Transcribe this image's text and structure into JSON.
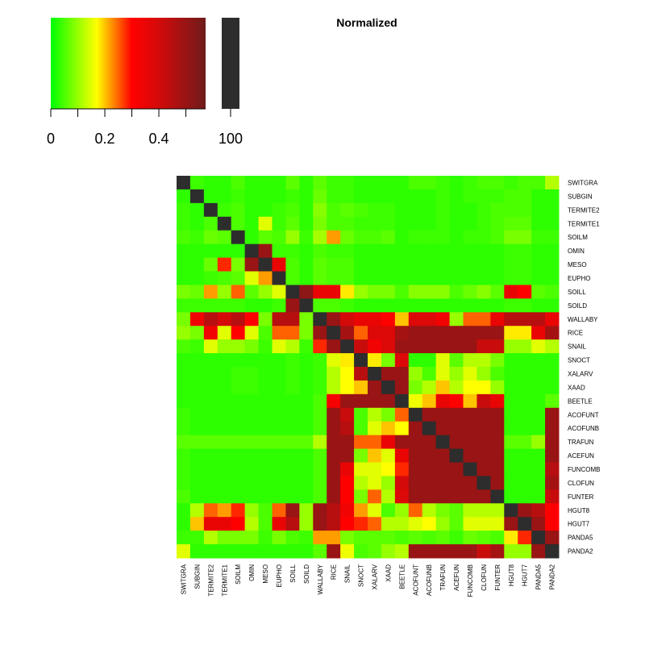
{
  "chart_data": {
    "type": "heatmap",
    "title": "Normalized",
    "labels": [
      "SWITGRA",
      "SUBGIN",
      "TERMITE2",
      "TERMITE1",
      "SOILM",
      "OMIN",
      "MESO",
      "EUPHO",
      "SOILL",
      "SOILD",
      "WALLABY",
      "RICE",
      "SNAIL",
      "SNOCT",
      "XALARV",
      "XAAD",
      "BEETLE",
      "ACOFUNT",
      "ACOFUNB",
      "TRAFUN",
      "ACEFUN",
      "FUNCOMB",
      "CLOFUN",
      "FUNTER",
      "HGUT8",
      "HGUT7",
      "PANDA5",
      "PANDA2"
    ],
    "colorscale": [
      [
        0,
        "#00ff00"
      ],
      [
        0.17,
        "#ffff00"
      ],
      [
        0.3,
        "#ff0000"
      ],
      [
        0.4,
        "#d40a0a"
      ],
      [
        0.573,
        "#6e1b1b"
      ]
    ],
    "clim": [
      0,
      0.573
    ],
    "colorbar_ticks": [
      0,
      0.2,
      0.4
    ],
    "colorbar_minor_ticks": [
      0.1,
      0.3,
      0.5
    ],
    "special": {
      "value": 100,
      "color": "#2d2d2d"
    },
    "values": [
      [
        100,
        0.04,
        0.03,
        0.03,
        0.05,
        0.03,
        0.03,
        0.03,
        0.06,
        0.03,
        0.06,
        0.04,
        0.04,
        0.03,
        0.03,
        0.03,
        0.03,
        0.05,
        0.05,
        0.04,
        0.03,
        0.04,
        0.05,
        0.05,
        0.04,
        0.05,
        0.05,
        0.12
      ],
      [
        0.03,
        100,
        0.03,
        0.03,
        0.04,
        0.03,
        0.03,
        0.03,
        0.04,
        0.03,
        0.07,
        0.04,
        0.04,
        0.03,
        0.03,
        0.03,
        0.03,
        0.03,
        0.03,
        0.04,
        0.03,
        0.04,
        0.04,
        0.04,
        0.05,
        0.05,
        0.03,
        0.03
      ],
      [
        0.04,
        0.03,
        100,
        0.04,
        0.05,
        0.03,
        0.03,
        0.04,
        0.05,
        0.03,
        0.09,
        0.05,
        0.06,
        0.05,
        0.04,
        0.04,
        0.03,
        0.03,
        0.03,
        0.04,
        0.03,
        0.03,
        0.04,
        0.05,
        0.05,
        0.05,
        0.03,
        0.03
      ],
      [
        0.04,
        0.03,
        0.05,
        100,
        0.05,
        0.03,
        0.15,
        0.04,
        0.06,
        0.03,
        0.08,
        0.05,
        0.05,
        0.04,
        0.04,
        0.04,
        0.03,
        0.03,
        0.03,
        0.04,
        0.03,
        0.03,
        0.04,
        0.05,
        0.06,
        0.06,
        0.03,
        0.03
      ],
      [
        0.05,
        0.04,
        0.07,
        0.06,
        100,
        0.03,
        0.06,
        0.05,
        0.1,
        0.04,
        0.11,
        0.22,
        0.07,
        0.05,
        0.05,
        0.06,
        0.03,
        0.04,
        0.04,
        0.04,
        0.03,
        0.04,
        0.04,
        0.05,
        0.08,
        0.08,
        0.04,
        0.04
      ],
      [
        0.03,
        0.03,
        0.03,
        0.03,
        0.03,
        100,
        0.5,
        0.04,
        0.04,
        0.03,
        0.05,
        0.04,
        0.04,
        0.03,
        0.03,
        0.03,
        0.03,
        0.03,
        0.03,
        0.03,
        0.03,
        0.03,
        0.03,
        0.03,
        0.04,
        0.04,
        0.03,
        0.03
      ],
      [
        0.03,
        0.03,
        0.07,
        0.28,
        0.08,
        0.5,
        100,
        0.35,
        0.05,
        0.03,
        0.06,
        0.05,
        0.05,
        0.03,
        0.03,
        0.03,
        0.03,
        0.03,
        0.03,
        0.03,
        0.03,
        0.03,
        0.03,
        0.03,
        0.04,
        0.04,
        0.03,
        0.03
      ],
      [
        0.03,
        0.03,
        0.04,
        0.05,
        0.06,
        0.15,
        0.22,
        100,
        0.05,
        0.03,
        0.06,
        0.05,
        0.05,
        0.03,
        0.03,
        0.03,
        0.03,
        0.03,
        0.03,
        0.03,
        0.03,
        0.03,
        0.03,
        0.03,
        0.04,
        0.04,
        0.03,
        0.03
      ],
      [
        0.08,
        0.07,
        0.22,
        0.1,
        0.25,
        0.06,
        0.1,
        0.15,
        100,
        0.52,
        0.35,
        0.35,
        0.18,
        0.1,
        0.08,
        0.08,
        0.05,
        0.09,
        0.09,
        0.09,
        0.05,
        0.07,
        0.09,
        0.06,
        0.35,
        0.3,
        0.06,
        0.05
      ],
      [
        0.04,
        0.04,
        0.04,
        0.04,
        0.04,
        0.03,
        0.03,
        0.04,
        0.5,
        100,
        0.05,
        0.05,
        0.04,
        0.03,
        0.03,
        0.03,
        0.03,
        0.03,
        0.03,
        0.03,
        0.03,
        0.03,
        0.03,
        0.03,
        0.04,
        0.04,
        0.03,
        0.03
      ],
      [
        0.08,
        0.33,
        0.45,
        0.4,
        0.45,
        0.3,
        0.08,
        0.45,
        0.45,
        0.08,
        100,
        0.5,
        0.4,
        0.35,
        0.35,
        0.3,
        0.2,
        0.38,
        0.38,
        0.33,
        0.1,
        0.25,
        0.25,
        0.35,
        0.45,
        0.45,
        0.45,
        0.35
      ],
      [
        0.1,
        0.08,
        0.33,
        0.15,
        0.3,
        0.15,
        0.05,
        0.25,
        0.25,
        0.08,
        0.5,
        100,
        0.48,
        0.25,
        0.38,
        0.38,
        0.48,
        0.5,
        0.5,
        0.5,
        0.5,
        0.5,
        0.5,
        0.5,
        0.18,
        0.18,
        0.35,
        0.48
      ],
      [
        0.05,
        0.04,
        0.15,
        0.1,
        0.1,
        0.08,
        0.04,
        0.15,
        0.12,
        0.04,
        0.28,
        0.5,
        100,
        0.42,
        0.33,
        0.38,
        0.5,
        0.5,
        0.5,
        0.5,
        0.5,
        0.5,
        0.42,
        0.42,
        0.1,
        0.1,
        0.15,
        0.12
      ],
      [
        0.03,
        0.03,
        0.03,
        0.03,
        0.03,
        0.03,
        0.03,
        0.03,
        0.04,
        0.03,
        0.04,
        0.15,
        0.18,
        100,
        0.18,
        0.08,
        0.38,
        0.03,
        0.03,
        0.15,
        0.06,
        0.12,
        0.12,
        0.08,
        0.03,
        0.03,
        0.03,
        0.03
      ],
      [
        0.03,
        0.03,
        0.03,
        0.03,
        0.04,
        0.04,
        0.03,
        0.03,
        0.04,
        0.03,
        0.04,
        0.12,
        0.17,
        0.45,
        100,
        0.5,
        0.5,
        0.1,
        0.05,
        0.15,
        0.1,
        0.15,
        0.1,
        0.05,
        0.03,
        0.03,
        0.03,
        0.03
      ],
      [
        0.03,
        0.03,
        0.03,
        0.03,
        0.04,
        0.04,
        0.03,
        0.03,
        0.04,
        0.03,
        0.04,
        0.12,
        0.17,
        0.2,
        0.5,
        100,
        0.5,
        0.08,
        0.12,
        0.2,
        0.12,
        0.17,
        0.17,
        0.1,
        0.03,
        0.03,
        0.03,
        0.03
      ],
      [
        0.03,
        0.03,
        0.03,
        0.03,
        0.03,
        0.03,
        0.03,
        0.03,
        0.03,
        0.03,
        0.05,
        0.32,
        0.5,
        0.5,
        0.5,
        0.5,
        100,
        0.16,
        0.2,
        0.35,
        0.3,
        0.2,
        0.42,
        0.35,
        0.03,
        0.03,
        0.03,
        0.06
      ],
      [
        0.04,
        0.03,
        0.03,
        0.03,
        0.03,
        0.03,
        0.03,
        0.03,
        0.03,
        0.03,
        0.05,
        0.5,
        0.42,
        0.05,
        0.12,
        0.08,
        0.25,
        100,
        0.5,
        0.5,
        0.5,
        0.5,
        0.5,
        0.5,
        0.03,
        0.03,
        0.03,
        0.5
      ],
      [
        0.04,
        0.03,
        0.03,
        0.03,
        0.03,
        0.03,
        0.03,
        0.03,
        0.03,
        0.03,
        0.05,
        0.5,
        0.45,
        0.05,
        0.15,
        0.2,
        0.17,
        0.5,
        100,
        0.5,
        0.5,
        0.5,
        0.5,
        0.5,
        0.03,
        0.03,
        0.03,
        0.5
      ],
      [
        0.06,
        0.06,
        0.06,
        0.06,
        0.06,
        0.06,
        0.06,
        0.06,
        0.06,
        0.06,
        0.12,
        0.5,
        0.5,
        0.25,
        0.25,
        0.35,
        0.5,
        0.5,
        0.5,
        100,
        0.5,
        0.5,
        0.5,
        0.5,
        0.06,
        0.06,
        0.1,
        0.5
      ],
      [
        0.04,
        0.03,
        0.03,
        0.03,
        0.03,
        0.03,
        0.03,
        0.03,
        0.03,
        0.03,
        0.05,
        0.5,
        0.5,
        0.08,
        0.2,
        0.15,
        0.35,
        0.5,
        0.5,
        0.5,
        100,
        0.5,
        0.5,
        0.5,
        0.03,
        0.03,
        0.03,
        0.5
      ],
      [
        0.04,
        0.03,
        0.03,
        0.03,
        0.03,
        0.03,
        0.03,
        0.03,
        0.03,
        0.03,
        0.05,
        0.5,
        0.35,
        0.15,
        0.15,
        0.17,
        0.28,
        0.5,
        0.5,
        0.5,
        0.5,
        100,
        0.5,
        0.5,
        0.03,
        0.03,
        0.03,
        0.45
      ],
      [
        0.04,
        0.03,
        0.03,
        0.03,
        0.03,
        0.03,
        0.03,
        0.03,
        0.03,
        0.03,
        0.05,
        0.5,
        0.3,
        0.12,
        0.15,
        0.1,
        0.4,
        0.5,
        0.5,
        0.5,
        0.5,
        0.5,
        100,
        0.5,
        0.03,
        0.03,
        0.03,
        0.48
      ],
      [
        0.05,
        0.03,
        0.03,
        0.03,
        0.03,
        0.03,
        0.03,
        0.03,
        0.03,
        0.03,
        0.05,
        0.5,
        0.3,
        0.08,
        0.25,
        0.12,
        0.38,
        0.5,
        0.5,
        0.5,
        0.5,
        0.5,
        0.5,
        100,
        0.03,
        0.03,
        0.03,
        0.42
      ],
      [
        0.03,
        0.12,
        0.25,
        0.22,
        0.28,
        0.1,
        0.05,
        0.25,
        0.5,
        0.1,
        0.5,
        0.45,
        0.33,
        0.22,
        0.15,
        0.05,
        0.1,
        0.25,
        0.12,
        0.08,
        0.06,
        0.12,
        0.12,
        0.12,
        100,
        0.5,
        0.45,
        0.3
      ],
      [
        0.03,
        0.2,
        0.35,
        0.35,
        0.3,
        0.12,
        0.05,
        0.35,
        0.45,
        0.1,
        0.5,
        0.45,
        0.3,
        0.28,
        0.25,
        0.12,
        0.12,
        0.15,
        0.17,
        0.1,
        0.06,
        0.15,
        0.15,
        0.15,
        0.5,
        100,
        0.5,
        0.3
      ],
      [
        0.04,
        0.04,
        0.12,
        0.08,
        0.08,
        0.08,
        0.04,
        0.08,
        0.05,
        0.04,
        0.22,
        0.22,
        0.08,
        0.06,
        0.06,
        0.06,
        0.05,
        0.06,
        0.05,
        0.06,
        0.04,
        0.07,
        0.06,
        0.05,
        0.18,
        0.28,
        100,
        0.5
      ],
      [
        0.15,
        0.03,
        0.03,
        0.03,
        0.03,
        0.03,
        0.03,
        0.03,
        0.03,
        0.03,
        0.06,
        0.5,
        0.16,
        0.05,
        0.06,
        0.1,
        0.12,
        0.5,
        0.5,
        0.5,
        0.5,
        0.5,
        0.42,
        0.48,
        0.1,
        0.1,
        0.5,
        100
      ]
    ]
  }
}
